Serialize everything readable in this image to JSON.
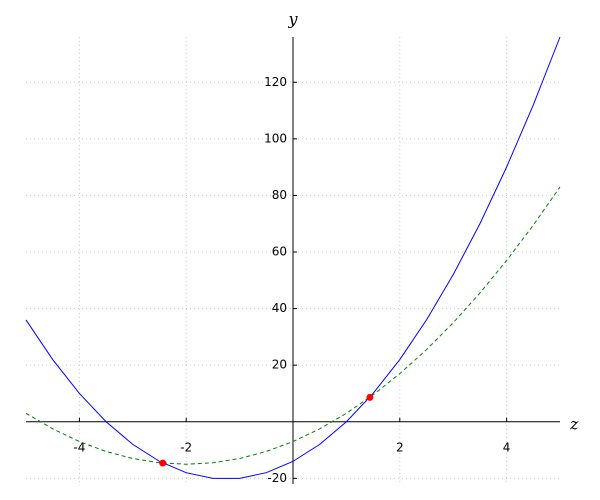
{
  "chart_data": {
    "type": "line",
    "x_label": "z",
    "y_label": "y",
    "x": [
      -5,
      -4.5,
      -4,
      -3.5,
      -3,
      -2.5,
      -2,
      -1.5,
      -1,
      -0.5,
      0,
      0.5,
      1,
      1.5,
      2,
      2.5,
      3,
      3.5,
      4,
      4.5,
      5
    ],
    "series": [
      {
        "color": "#0000ff",
        "dash": false,
        "values": [
          36,
          22,
          10,
          0,
          -8,
          -14,
          -18,
          -20,
          -20,
          -18,
          -14,
          -8,
          0,
          10,
          22,
          36,
          52,
          70,
          90,
          112,
          136
        ]
      },
      {
        "color": "#008000",
        "dash": true,
        "values": [
          3,
          -2.5,
          -7,
          -10.5,
          -13,
          -14.5,
          -15,
          -14.5,
          -13,
          -10.5,
          -7,
          -2.5,
          3,
          9.5,
          17,
          25.5,
          35,
          45.5,
          57,
          69.5,
          83
        ]
      }
    ],
    "points": {
      "color": "#ff0000",
      "x": [
        -2.44,
        1.44
      ],
      "y": [
        -14.6,
        8.6
      ]
    },
    "xlim": [
      -5,
      5
    ],
    "ylim": [
      -22,
      136
    ],
    "xticks": [
      -4,
      -2,
      2,
      4
    ],
    "yticks": [
      -20,
      20,
      40,
      60,
      80,
      100,
      120
    ],
    "grid": true
  }
}
